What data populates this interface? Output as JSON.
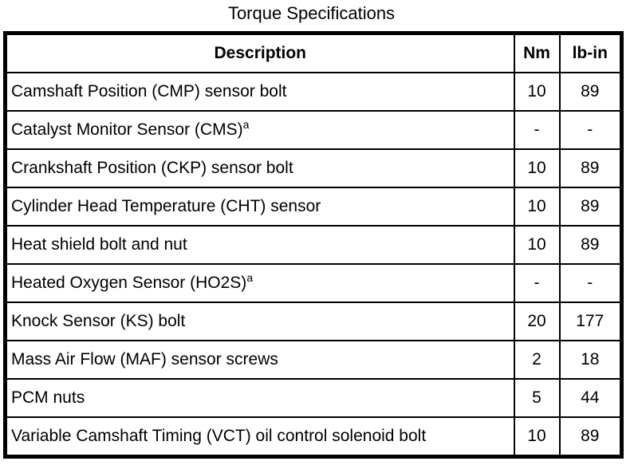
{
  "title": "Torque Specifications",
  "colors": {
    "background": "#ffffff",
    "text": "#000000",
    "border": "#000000"
  },
  "table": {
    "headers": {
      "description": "Description",
      "nm": "Nm",
      "lb_in": "lb-in"
    },
    "rows": [
      {
        "description": "Camshaft Position (CMP) sensor bolt",
        "superscript": "",
        "nm": "10",
        "lb_in": "89"
      },
      {
        "description": "Catalyst Monitor Sensor (CMS)",
        "superscript": "a",
        "nm": "-",
        "lb_in": "-"
      },
      {
        "description": "Crankshaft Position (CKP) sensor bolt",
        "superscript": "",
        "nm": "10",
        "lb_in": "89"
      },
      {
        "description": "Cylinder Head Temperature (CHT) sensor",
        "superscript": "",
        "nm": "10",
        "lb_in": "89"
      },
      {
        "description": "Heat shield bolt and nut",
        "superscript": "",
        "nm": "10",
        "lb_in": "89"
      },
      {
        "description": "Heated Oxygen Sensor (HO2S)",
        "superscript": "a",
        "nm": "-",
        "lb_in": "-"
      },
      {
        "description": "Knock Sensor (KS) bolt",
        "superscript": "",
        "nm": "20",
        "lb_in": "177"
      },
      {
        "description": "Mass Air Flow (MAF) sensor screws",
        "superscript": "",
        "nm": "2",
        "lb_in": "18"
      },
      {
        "description": "PCM nuts",
        "superscript": "",
        "nm": "5",
        "lb_in": "44"
      },
      {
        "description": "Variable Camshaft Timing (VCT) oil control solenoid bolt",
        "superscript": "",
        "nm": "10",
        "lb_in": "89"
      }
    ]
  }
}
